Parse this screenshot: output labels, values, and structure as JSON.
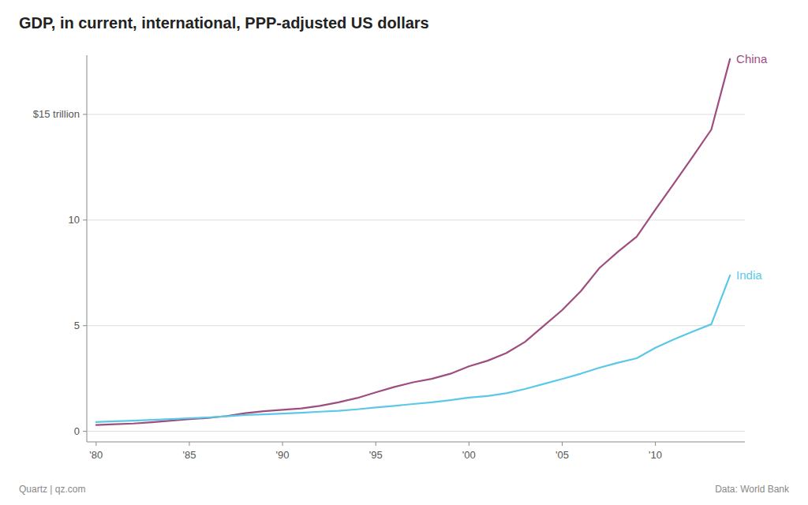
{
  "chart_data": {
    "type": "line",
    "title": "GDP, in current, international, PPP-adjusted US dollars",
    "x": [
      1980,
      1981,
      1982,
      1983,
      1984,
      1985,
      1986,
      1987,
      1988,
      1989,
      1990,
      1991,
      1992,
      1993,
      1994,
      1995,
      1996,
      1997,
      1998,
      1999,
      2000,
      2001,
      2002,
      2003,
      2004,
      2005,
      2006,
      2007,
      2008,
      2009,
      2010,
      2011,
      2012,
      2013,
      2014
    ],
    "series": [
      {
        "name": "China",
        "color": "#9e4d7f",
        "values": [
          0.301,
          0.335,
          0.368,
          0.43,
          0.503,
          0.573,
          0.634,
          0.724,
          0.858,
          0.951,
          1.017,
          1.084,
          1.205,
          1.374,
          1.575,
          1.844,
          2.102,
          2.321,
          2.483,
          2.724,
          3.074,
          3.342,
          3.7,
          4.23,
          4.982,
          5.738,
          6.632,
          7.73,
          8.504,
          9.211,
          10.49,
          11.74,
          13.0,
          14.28,
          17.617
        ]
      },
      {
        "name": "India",
        "color": "#5bc8e8",
        "values": [
          0.44,
          0.478,
          0.506,
          0.542,
          0.579,
          0.621,
          0.657,
          0.711,
          0.773,
          0.806,
          0.84,
          0.875,
          0.929,
          0.97,
          1.04,
          1.127,
          1.206,
          1.293,
          1.373,
          1.477,
          1.594,
          1.674,
          1.802,
          2.003,
          2.242,
          2.477,
          2.728,
          3.009,
          3.249,
          3.459,
          3.953,
          4.354,
          4.722,
          5.069,
          7.375
        ]
      }
    ],
    "xlim": [
      1979.5,
      2014.8
    ],
    "ylim": [
      -0.5,
      17.8
    ],
    "xticks": [
      {
        "value": 1980,
        "label": "'80"
      },
      {
        "value": 1985,
        "label": "'85"
      },
      {
        "value": 1990,
        "label": "'90"
      },
      {
        "value": 1995,
        "label": "'95"
      },
      {
        "value": 2000,
        "label": "'00"
      },
      {
        "value": 2005,
        "label": "'05"
      },
      {
        "value": 2010,
        "label": "'10"
      }
    ],
    "yticks": [
      0,
      5,
      10,
      {
        "value": 15,
        "label": "$15 trillion"
      }
    ],
    "grid": true,
    "annotations": [
      "Quartz | qz.com",
      "Data: World Bank"
    ]
  }
}
